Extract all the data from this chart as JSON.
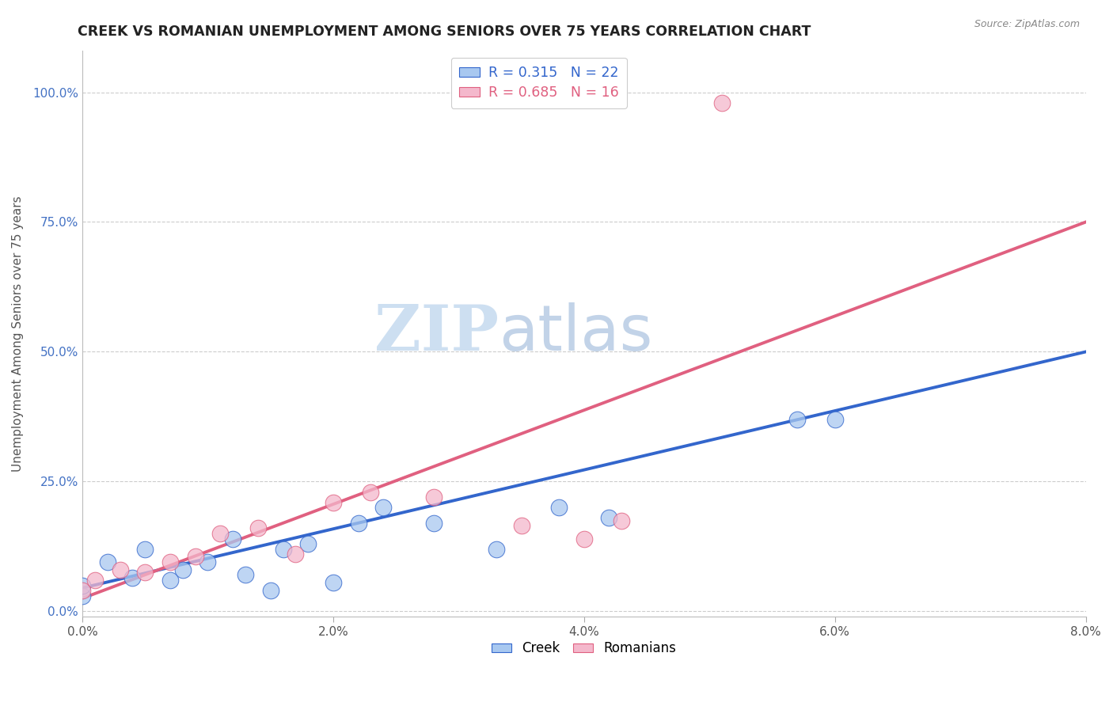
{
  "title": "CREEK VS ROMANIAN UNEMPLOYMENT AMONG SENIORS OVER 75 YEARS CORRELATION CHART",
  "source": "Source: ZipAtlas.com",
  "xlabel_ticks": [
    "0.0%",
    "2.0%",
    "4.0%",
    "6.0%",
    "8.0%"
  ],
  "xlabel_tick_vals": [
    0.0,
    0.02,
    0.04,
    0.06,
    0.08
  ],
  "ylabel_ticks": [
    "0.0%",
    "25.0%",
    "50.0%",
    "75.0%",
    "100.0%"
  ],
  "ylabel_tick_vals": [
    0.0,
    0.25,
    0.5,
    0.75,
    1.0
  ],
  "ylabel_label": "Unemployment Among Seniors over 75 years",
  "xmin": 0.0,
  "xmax": 0.08,
  "ymin": -0.01,
  "ymax": 1.08,
  "creek_color": "#A8C8F0",
  "romanian_color": "#F4B8CC",
  "creek_line_color": "#3366CC",
  "romanian_line_color": "#E06080",
  "creek_R": 0.315,
  "creek_N": 22,
  "romanian_R": 0.685,
  "romanian_N": 16,
  "legend_labels": [
    "Creek",
    "Romanians"
  ],
  "watermark_zip": "ZIP",
  "watermark_atlas": "atlas",
  "creek_line_x0": 0.0,
  "creek_line_y0": 0.045,
  "creek_line_x1": 0.08,
  "creek_line_y1": 0.5,
  "romanian_line_x0": 0.0,
  "romanian_line_y0": 0.025,
  "romanian_line_x1": 0.08,
  "romanian_line_y1": 0.75,
  "creek_x": [
    0.0,
    0.0,
    0.002,
    0.004,
    0.005,
    0.007,
    0.008,
    0.01,
    0.012,
    0.013,
    0.015,
    0.016,
    0.018,
    0.02,
    0.022,
    0.024,
    0.028,
    0.033,
    0.038,
    0.042,
    0.057,
    0.06
  ],
  "creek_y": [
    0.03,
    0.05,
    0.095,
    0.065,
    0.12,
    0.06,
    0.08,
    0.095,
    0.14,
    0.07,
    0.04,
    0.12,
    0.13,
    0.055,
    0.17,
    0.2,
    0.17,
    0.12,
    0.2,
    0.18,
    0.37,
    0.37
  ],
  "romanian_x": [
    0.0,
    0.001,
    0.003,
    0.005,
    0.007,
    0.009,
    0.011,
    0.014,
    0.017,
    0.02,
    0.023,
    0.028,
    0.035,
    0.04,
    0.043,
    0.051
  ],
  "romanian_y": [
    0.04,
    0.06,
    0.08,
    0.075,
    0.095,
    0.105,
    0.15,
    0.16,
    0.11,
    0.21,
    0.23,
    0.22,
    0.165,
    0.14,
    0.175,
    0.98
  ]
}
